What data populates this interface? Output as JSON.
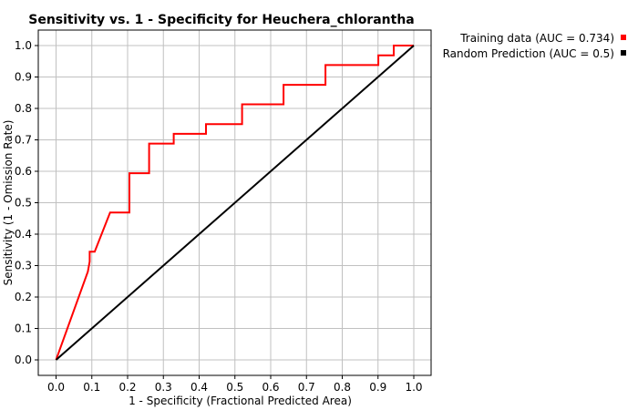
{
  "chart_data": {
    "type": "line",
    "title": "Sensitivity vs. 1 - Specificity for Heuchera_chlorantha",
    "xlabel": "1 - Specificity  (Fractional Predicted Area)",
    "ylabel": "Sensitivity  (1 - Omission Rate)",
    "xlim": [
      0,
      1
    ],
    "ylim": [
      0,
      1
    ],
    "x_ticks": [
      "0.0",
      "0.1",
      "0.2",
      "0.3",
      "0.4",
      "0.5",
      "0.6",
      "0.7",
      "0.8",
      "0.9",
      "1.0"
    ],
    "y_ticks": [
      "0.0",
      "0.1",
      "0.2",
      "0.3",
      "0.4",
      "0.5",
      "0.6",
      "0.7",
      "0.8",
      "0.9",
      "1.0"
    ],
    "grid": true,
    "legend_position": "top-right",
    "series": [
      {
        "name": "Training data (AUC = 0.734)",
        "color": "#ff0000",
        "x": [
          0.0,
          0.089,
          0.094,
          0.094,
          0.108,
          0.108,
          0.151,
          0.151,
          0.205,
          0.205,
          0.26,
          0.26,
          0.329,
          0.329,
          0.419,
          0.419,
          0.52,
          0.52,
          0.636,
          0.636,
          0.753,
          0.753,
          0.901,
          0.901,
          0.944,
          0.944,
          1.0
        ],
        "y": [
          0.0,
          0.281,
          0.313,
          0.344,
          0.344,
          0.344,
          0.469,
          0.469,
          0.469,
          0.594,
          0.594,
          0.688,
          0.688,
          0.719,
          0.719,
          0.75,
          0.75,
          0.813,
          0.813,
          0.875,
          0.875,
          0.938,
          0.938,
          0.969,
          0.969,
          1.0,
          1.0
        ]
      },
      {
        "name": "Random Prediction (AUC = 0.5)",
        "color": "#000000",
        "x": [
          0.0,
          1.0
        ],
        "y": [
          0.0,
          1.0
        ]
      }
    ]
  }
}
